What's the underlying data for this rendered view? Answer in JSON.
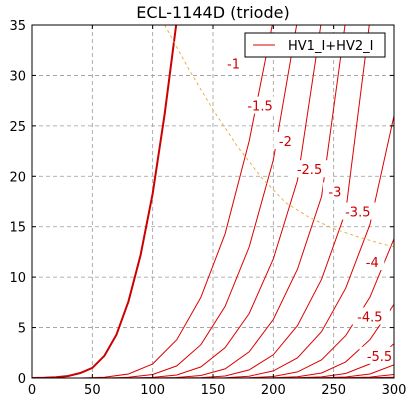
{
  "chart_data": {
    "type": "line",
    "title": "ECL-1144D (triode)",
    "xlabel": "",
    "ylabel": "",
    "xlim": [
      0,
      300
    ],
    "ylim": [
      0,
      35
    ],
    "xticks": [
      0,
      50,
      100,
      150,
      200,
      250,
      300
    ],
    "yticks": [
      0,
      5,
      10,
      15,
      20,
      25,
      30,
      35
    ],
    "grid": true,
    "legend": {
      "position": "top-right",
      "entries": [
        "HV1_I+HV2_I"
      ]
    },
    "colors": {
      "curve": "#dd0000",
      "zero_curve": "#cc0000",
      "load_line": "#e8a93a",
      "grid": "#9a9a9a",
      "text": "#000000",
      "label": "#cc0000"
    },
    "series": [
      {
        "label": "",
        "x": [
          0,
          10,
          20,
          30,
          40,
          50,
          60,
          70,
          80,
          90,
          100,
          110,
          120
        ],
        "y": [
          0,
          0.02,
          0.08,
          0.2,
          0.5,
          1.0,
          2.2,
          4.3,
          7.6,
          12.2,
          18.3,
          26.2,
          35.5
        ]
      },
      {
        "label": "-1",
        "x": [
          40,
          60,
          80,
          100,
          120,
          140,
          160,
          180,
          200
        ],
        "y": [
          0,
          0.08,
          0.4,
          1.4,
          3.8,
          8.0,
          14.3,
          23.5,
          35.5
        ]
      },
      {
        "label": "-1.5",
        "x": [
          60,
          80,
          100,
          120,
          140,
          160,
          180,
          200,
          220
        ],
        "y": [
          0,
          0.07,
          0.35,
          1.2,
          3.3,
          7.1,
          13.0,
          21.6,
          35.5
        ]
      },
      {
        "label": "-2",
        "x": [
          80,
          100,
          120,
          140,
          160,
          180,
          200,
          220,
          240
        ],
        "y": [
          0,
          0.06,
          0.3,
          1.1,
          3.0,
          6.4,
          11.8,
          19.6,
          35.5
        ]
      },
      {
        "label": "-2.5",
        "x": [
          100,
          120,
          140,
          160,
          180,
          200,
          220,
          240,
          260
        ],
        "y": [
          0,
          0.05,
          0.25,
          0.9,
          2.6,
          5.8,
          10.8,
          18.0,
          35.5
        ]
      },
      {
        "label": "-3",
        "x": [
          120,
          140,
          160,
          180,
          200,
          220,
          240,
          260,
          280
        ],
        "y": [
          0,
          0.04,
          0.2,
          0.8,
          2.3,
          5.2,
          9.8,
          16.5,
          35.5
        ]
      },
      {
        "label": "-3.5",
        "x": [
          140,
          160,
          180,
          200,
          220,
          240,
          260,
          280,
          300
        ],
        "y": [
          0,
          0.03,
          0.18,
          0.7,
          2.0,
          4.6,
          8.9,
          15.2,
          26.0
        ]
      },
      {
        "label": "-4",
        "x": [
          160,
          180,
          200,
          220,
          240,
          260,
          280,
          300
        ],
        "y": [
          0,
          0.03,
          0.15,
          0.6,
          1.8,
          4.2,
          8.0,
          13.8
        ]
      },
      {
        "label": "-4.5",
        "x": [
          180,
          200,
          220,
          240,
          260,
          280,
          300
        ],
        "y": [
          0,
          0.02,
          0.13,
          0.5,
          1.6,
          3.8,
          7.3
        ]
      },
      {
        "label": "",
        "x": [
          200,
          220,
          240,
          260,
          280,
          300
        ],
        "y": [
          0,
          0.02,
          0.11,
          0.45,
          1.4,
          3.4
        ]
      },
      {
        "label": "-5.5",
        "x": [
          220,
          240,
          260,
          280,
          300
        ],
        "y": [
          0,
          0.02,
          0.1,
          0.4,
          1.3
        ]
      },
      {
        "label": "",
        "x": [
          240,
          260,
          280,
          300
        ],
        "y": [
          0,
          0.02,
          0.09,
          0.35
        ]
      },
      {
        "label": "",
        "x": [
          260,
          280,
          300
        ],
        "y": [
          0,
          0.02,
          0.08
        ]
      },
      {
        "label": "",
        "x": [
          280,
          300
        ],
        "y": [
          0,
          0.02
        ]
      }
    ],
    "load_line": {
      "x": [
        110,
        130,
        150,
        170,
        190,
        210,
        230,
        250,
        270,
        290,
        300
      ],
      "y": [
        35,
        30.6,
        26.6,
        23.0,
        19.9,
        17.4,
        15.9,
        14.8,
        14.0,
        13.3,
        13.0
      ]
    },
    "curve_labels": [
      {
        "text": "-1",
        "x": 167,
        "y": 31.2
      },
      {
        "text": "-1.5",
        "x": 189,
        "y": 27.0
      },
      {
        "text": "-2",
        "x": 210,
        "y": 23.5
      },
      {
        "text": "-2.5",
        "x": 230,
        "y": 20.7
      },
      {
        "text": "-3",
        "x": 251,
        "y": 18.5
      },
      {
        "text": "-3.5",
        "x": 270,
        "y": 16.5
      },
      {
        "text": "-4",
        "x": 282,
        "y": 11.5
      },
      {
        "text": "-4.5",
        "x": 280,
        "y": 6.1
      },
      {
        "text": "-5.5",
        "x": 288,
        "y": 2.2
      }
    ]
  }
}
